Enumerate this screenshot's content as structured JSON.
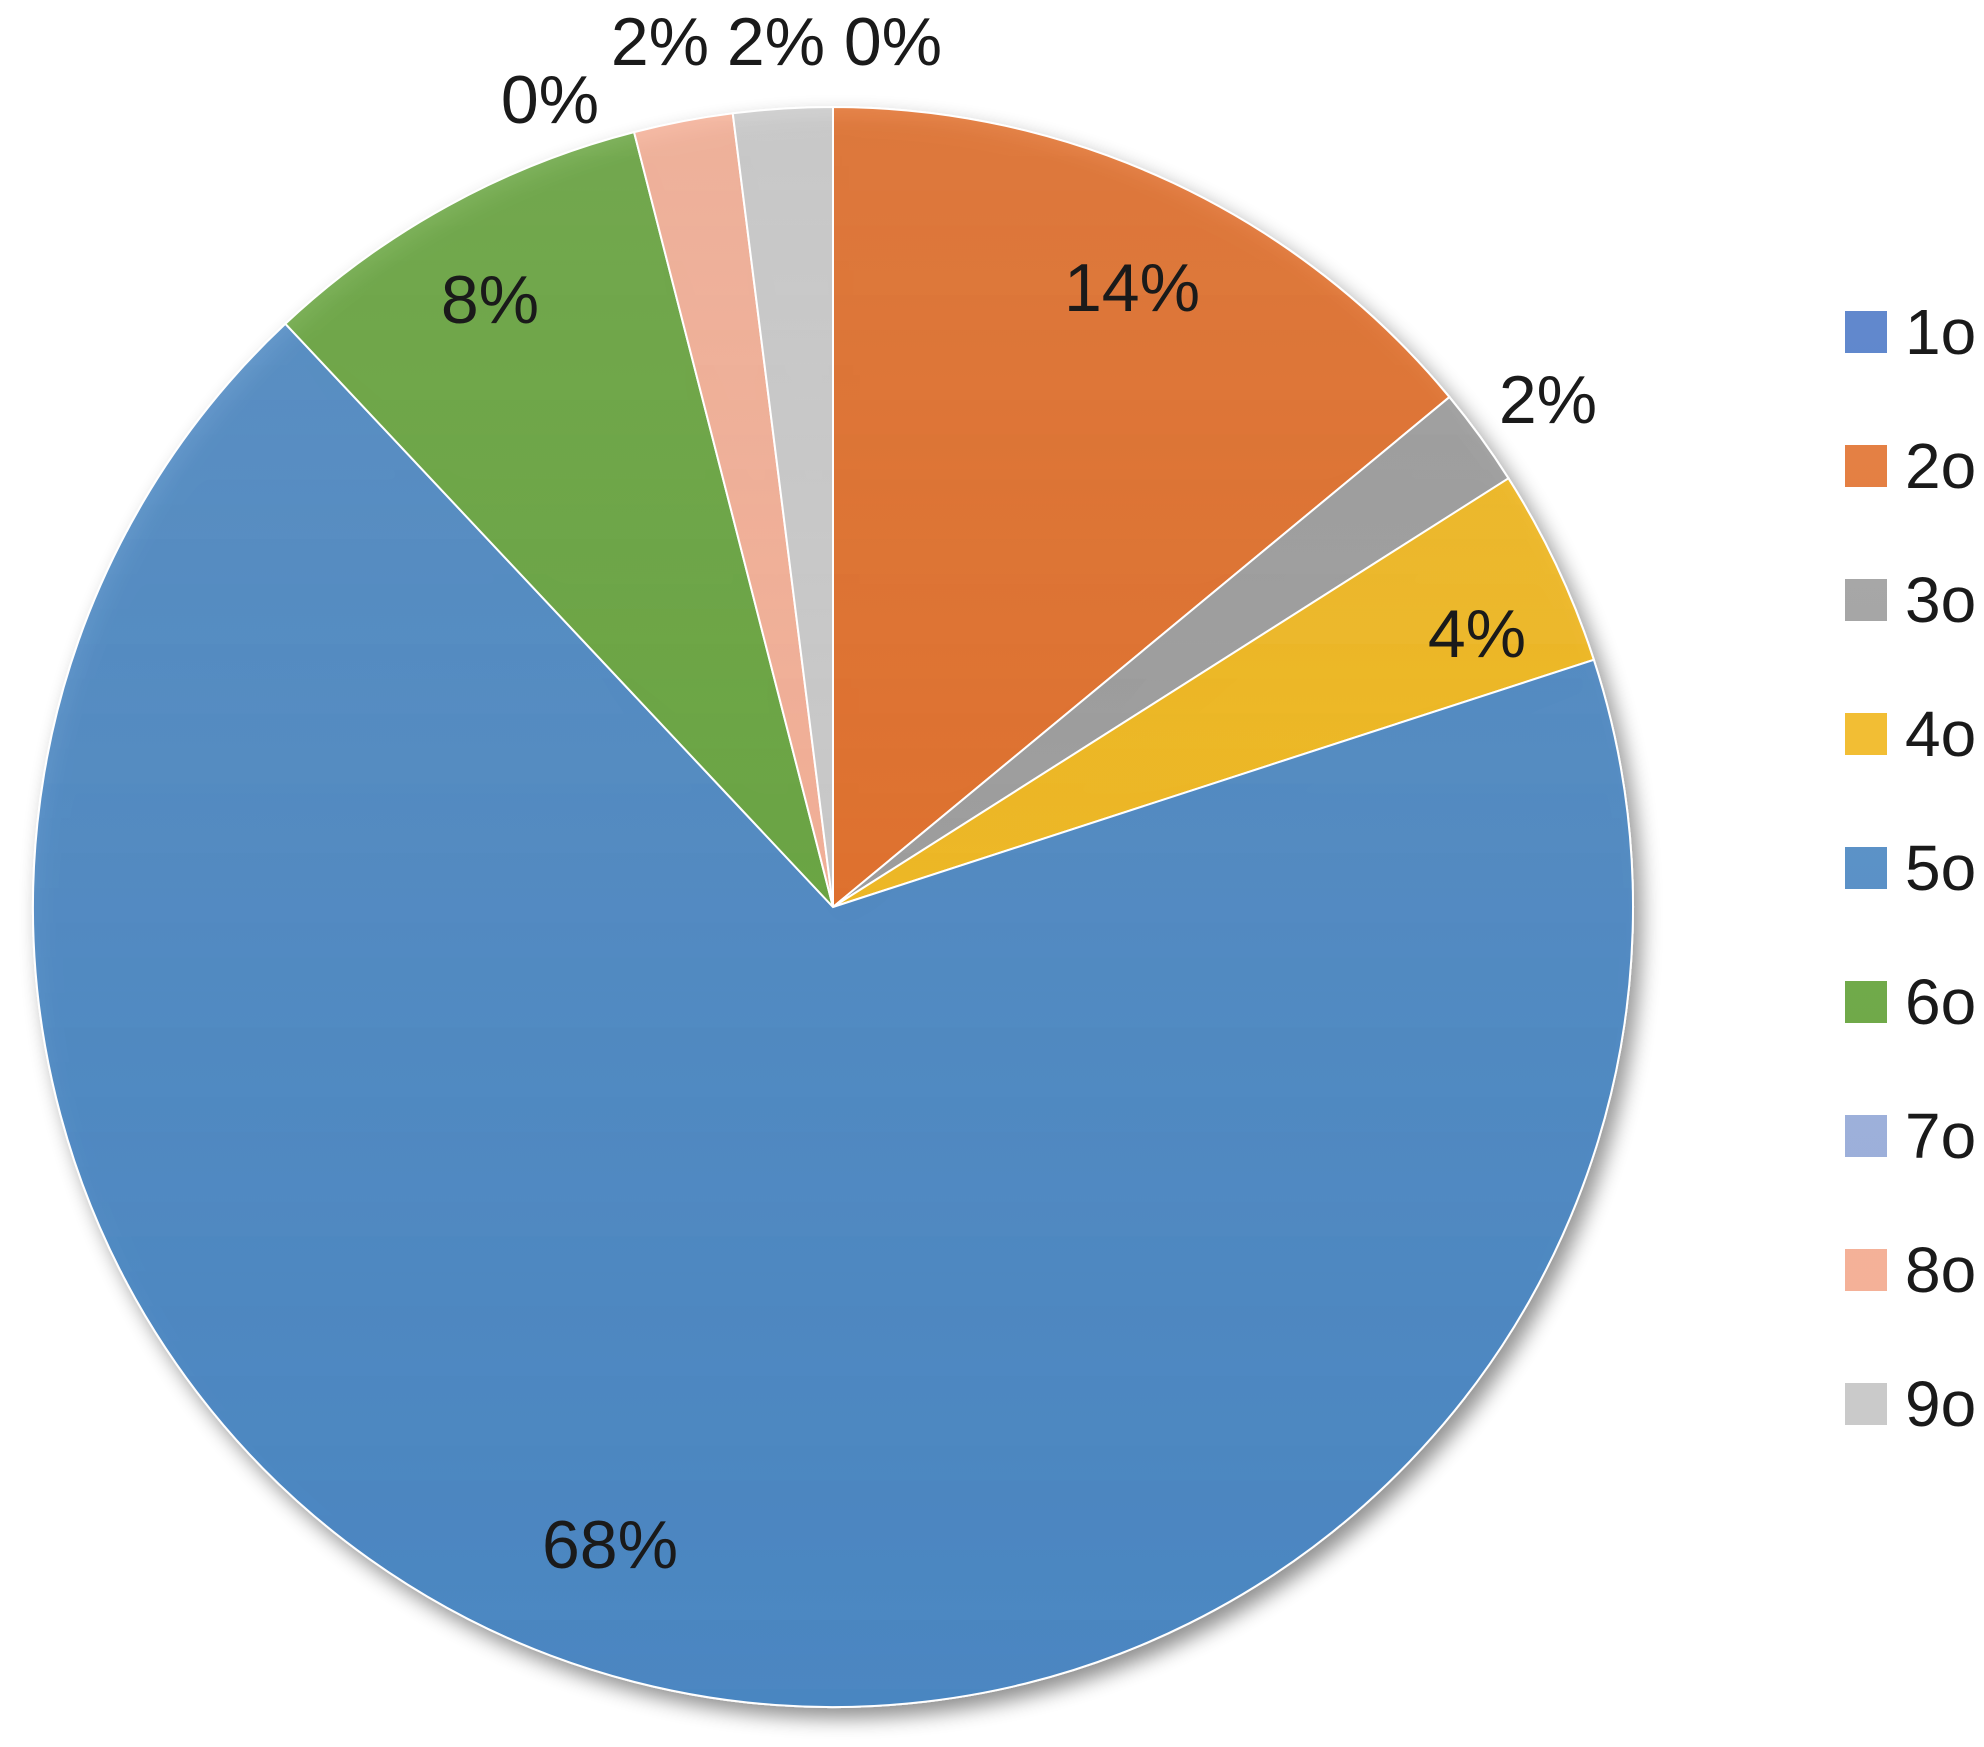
{
  "chart_data": {
    "type": "pie",
    "title": "",
    "start_angle_deg": 0,
    "direction": "clockwise",
    "legend_position": "right",
    "slices": [
      {
        "name": "1o",
        "value": 0,
        "label": "0%",
        "color": "#4472c4"
      },
      {
        "name": "2o",
        "value": 14,
        "label": "14%",
        "color": "#e06b25"
      },
      {
        "name": "3o",
        "value": 2,
        "label": "2%",
        "color": "#9a9a9a"
      },
      {
        "name": "4o",
        "value": 4,
        "label": "4%",
        "color": "#f0b61b"
      },
      {
        "name": "5o",
        "value": 68,
        "label": "68%",
        "color": "#4a86c1"
      },
      {
        "name": "6o",
        "value": 8,
        "label": "8%",
        "color": "#64a23a"
      },
      {
        "name": "7o",
        "value": 0,
        "label": "0%",
        "color": "#96aad8"
      },
      {
        "name": "8o",
        "value": 2,
        "label": "2%",
        "color": "#f4ad93"
      },
      {
        "name": "9o",
        "value": 2,
        "label": "2%",
        "color": "#c8c8c8"
      }
    ]
  }
}
